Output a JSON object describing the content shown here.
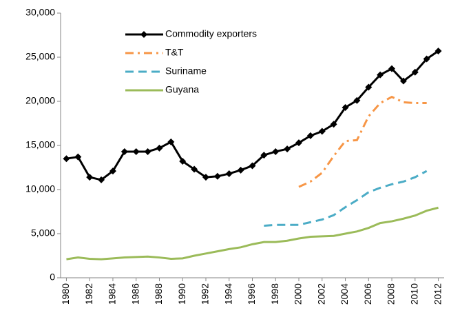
{
  "chart_data": {
    "type": "line",
    "x": [
      1980,
      1981,
      1982,
      1983,
      1984,
      1985,
      1986,
      1987,
      1988,
      1989,
      1990,
      1991,
      1992,
      1993,
      1994,
      1995,
      1996,
      1997,
      1998,
      1999,
      2000,
      2001,
      2002,
      2003,
      2004,
      2005,
      2006,
      2007,
      2008,
      2009,
      2010,
      2011,
      2012
    ],
    "xlim": [
      1979.5,
      2012.5
    ],
    "xticks": [
      1980,
      1982,
      1984,
      1986,
      1988,
      1990,
      1992,
      1994,
      1996,
      1998,
      2000,
      2002,
      2004,
      2006,
      2008,
      2010,
      2012
    ],
    "ylim": [
      0,
      30000
    ],
    "yticks": [
      0,
      {
        "value": 5000,
        "label": "5,000"
      },
      {
        "value": 10000,
        "label": "10,000"
      },
      {
        "value": 15000,
        "label": "15,000"
      },
      {
        "value": 20000,
        "label": "20,000"
      },
      {
        "value": 25000,
        "label": "25,000"
      },
      {
        "value": 30000,
        "label": "30,000"
      }
    ],
    "grid": false,
    "legend": "top-left",
    "series": [
      {
        "name": "Commodity exporters",
        "color": "#000000",
        "dash": "solid",
        "marker": "diamond",
        "values": [
          13500,
          13700,
          11400,
          11100,
          12100,
          14300,
          14300,
          14300,
          14700,
          15400,
          13200,
          12300,
          11400,
          11500,
          11800,
          12200,
          12700,
          13900,
          14300,
          14600,
          15300,
          16100,
          16600,
          17400,
          19300,
          20100,
          21600,
          23000,
          23700,
          22300,
          23300,
          24800,
          25700
        ]
      },
      {
        "name": "T&T",
        "color": "#f79646",
        "dash": "dash-dot",
        "values": [
          null,
          null,
          null,
          null,
          null,
          null,
          null,
          null,
          null,
          null,
          null,
          null,
          null,
          null,
          null,
          null,
          null,
          null,
          null,
          null,
          10300,
          10900,
          11900,
          13800,
          15500,
          15600,
          18300,
          19800,
          20500,
          19900,
          19800,
          19800,
          null
        ]
      },
      {
        "name": "Suriname",
        "color": "#4bacc6",
        "dash": "dash",
        "values": [
          null,
          null,
          null,
          null,
          null,
          null,
          null,
          null,
          null,
          null,
          null,
          null,
          null,
          null,
          null,
          null,
          null,
          5900,
          6000,
          6000,
          6000,
          6300,
          6600,
          7100,
          8000,
          8800,
          9700,
          10200,
          10600,
          10900,
          11400,
          12100,
          null
        ]
      },
      {
        "name": "Guyana",
        "color": "#9bbb59",
        "dash": "solid",
        "values": [
          2100,
          2300,
          2150,
          2100,
          2200,
          2300,
          2350,
          2400,
          2300,
          2150,
          2200,
          2500,
          2750,
          3000,
          3250,
          3450,
          3800,
          4050,
          4050,
          4200,
          4450,
          4650,
          4700,
          4750,
          5000,
          5250,
          5650,
          6200,
          6400,
          6700,
          7050,
          7600,
          7950
        ]
      }
    ]
  }
}
